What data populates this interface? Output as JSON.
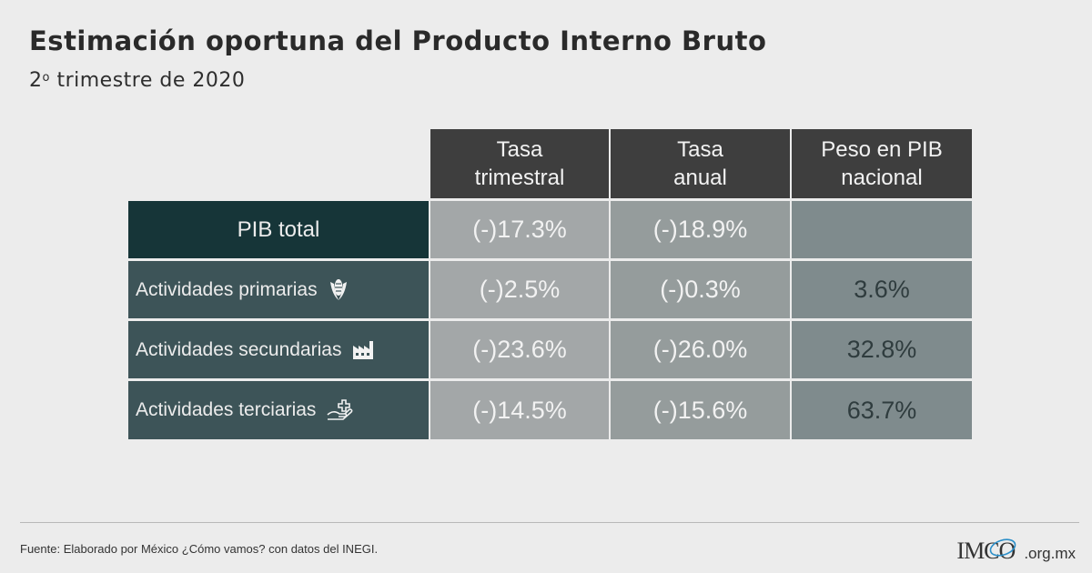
{
  "header": {
    "title": "Estimación oportuna del Producto Interno Bruto",
    "subtitle_number": "2",
    "subtitle_ordinal": "o",
    "subtitle_rest": " trimestre de 2020"
  },
  "chart_data": {
    "type": "table",
    "columns": [
      "Tasa trimestral",
      "Tasa anual",
      "Peso en PIB nacional"
    ],
    "rows": [
      {
        "label": "PIB total",
        "icon": "",
        "values": [
          "(-)17.3%",
          "(-)18.9%",
          ""
        ]
      },
      {
        "label": "Actividades primarias",
        "icon": "corn-icon",
        "values": [
          "(-)2.5%",
          "(-)0.3%",
          "3.6%"
        ]
      },
      {
        "label": "Actividades secundarias",
        "icon": "factory-icon",
        "values": [
          "(-)23.6%",
          "(-)26.0%",
          "32.8%"
        ]
      },
      {
        "label": "Actividades terciarias",
        "icon": "service-hand-icon",
        "values": [
          "(-)14.5%",
          "(-)15.6%",
          "63.7%"
        ]
      }
    ]
  },
  "table_headers": {
    "col1_line1": "Tasa",
    "col1_line2": "trimestral",
    "col2_line1": "Tasa",
    "col2_line2": "anual",
    "col3_line1": "Peso en PIB",
    "col3_line2": "nacional"
  },
  "footer": {
    "source": "Fuente: Elaborado por México ¿Cómo vamos? con datos del INEGI.",
    "logo_main": "IMCO",
    "logo_ext": ".org.mx"
  },
  "colors": {
    "background": "#ececec",
    "header_cell": "#3e3e3e",
    "total_label": "#163538",
    "row_label": "#3d5458",
    "col_trimestral": "#a3a7a8",
    "col_anual": "#959c9c",
    "col_peso": "#7f8b8d",
    "logo_accent": "#2c8fc9"
  }
}
